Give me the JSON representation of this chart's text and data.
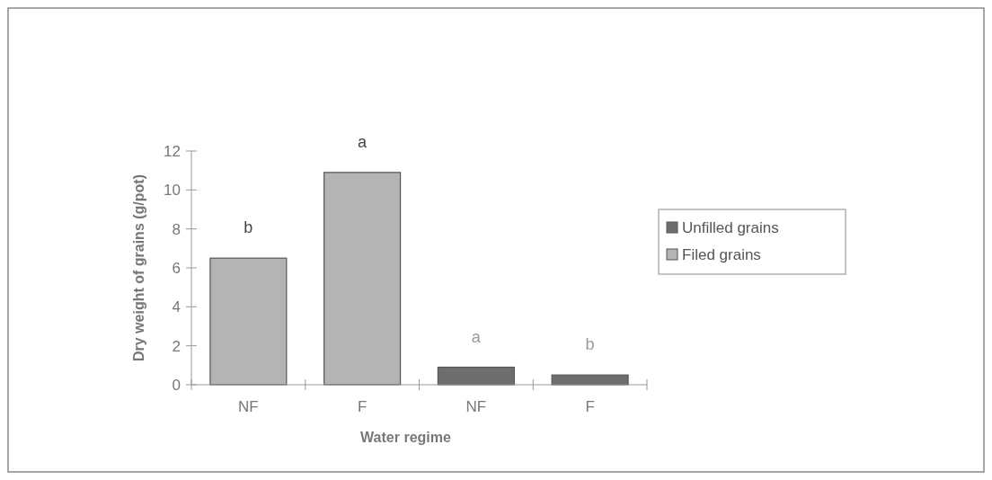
{
  "chart_data": {
    "type": "bar",
    "xlabel": "Water regime",
    "ylabel": "Dry weight of grains (g/pot)",
    "categories": [
      "NF",
      "F",
      "NF",
      "F"
    ],
    "series": [
      {
        "name": "Unfilled grains",
        "color": "#6e6e6e",
        "values": [
          null,
          null,
          0.9,
          0.5
        ]
      },
      {
        "name": "Filed grains",
        "color": "#b4b4b4",
        "values": [
          6.5,
          10.9,
          null,
          null
        ]
      }
    ],
    "ylim": [
      0,
      12
    ],
    "yticks": [
      0,
      2,
      4,
      6,
      8,
      10,
      12
    ],
    "legend": "right",
    "annotations": [
      "b",
      "a",
      "a",
      "b"
    ]
  }
}
